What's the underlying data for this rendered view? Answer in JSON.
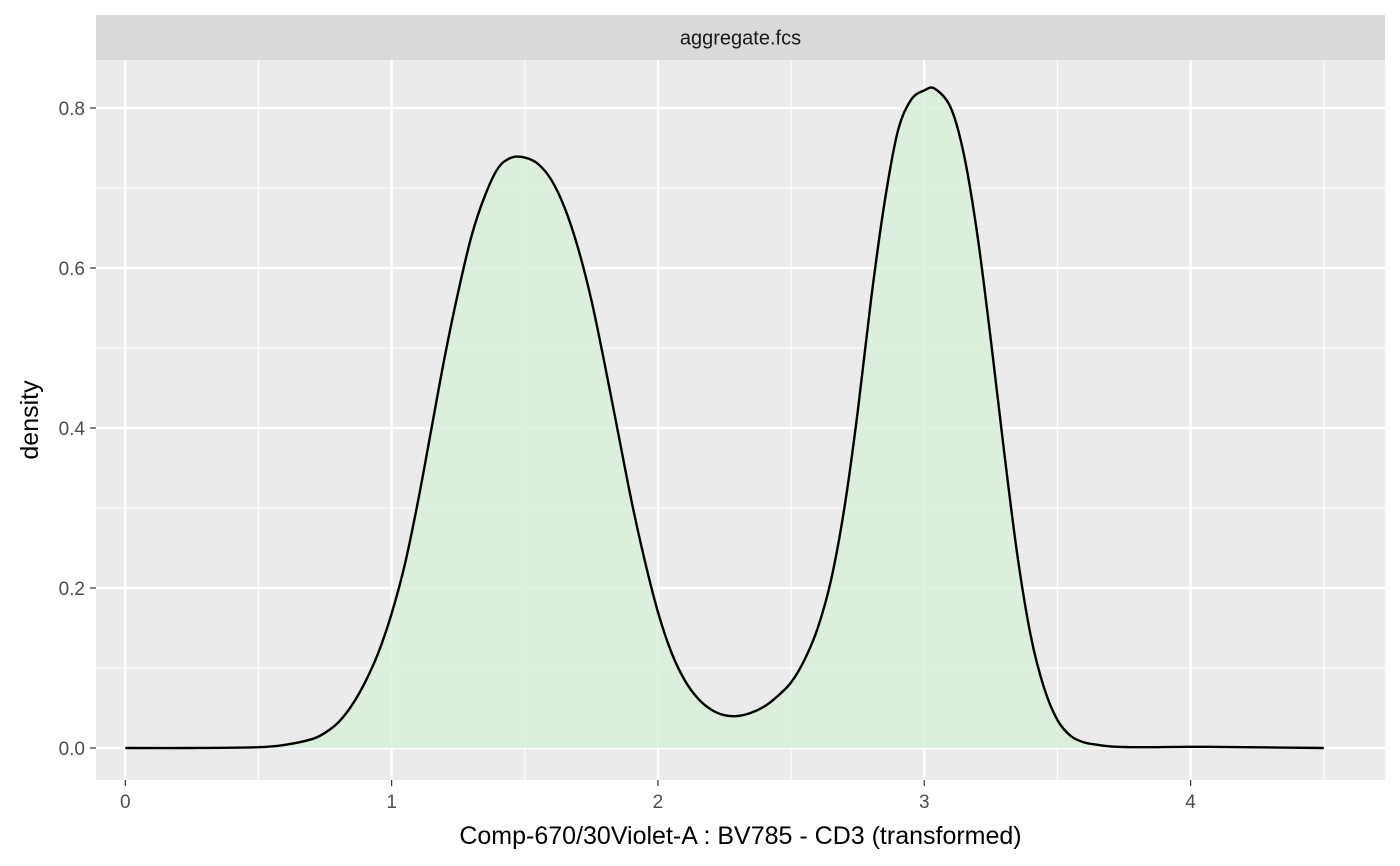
{
  "chart_data": {
    "type": "area",
    "facet_label": "aggregate.fcs",
    "xlabel": "Comp-670/30Violet-A : BV785 - CD3 (transformed)",
    "ylabel": "density",
    "xlim": [
      -0.11,
      4.73
    ],
    "ylim": [
      -0.04,
      0.86
    ],
    "x_ticks": [
      0,
      1,
      2,
      3,
      4
    ],
    "x_tick_labels": [
      "0",
      "1",
      "2",
      "3",
      "4"
    ],
    "y_ticks": [
      0.0,
      0.2,
      0.4,
      0.6,
      0.8
    ],
    "y_tick_labels": [
      "0.0",
      "0.2",
      "0.4",
      "0.6",
      "0.8"
    ],
    "grid": true,
    "legend": "none",
    "series": [
      {
        "x": [
          0.0,
          0.25,
          0.5,
          0.6,
          0.7,
          0.75,
          0.8,
          0.85,
          0.9,
          0.95,
          1.0,
          1.05,
          1.1,
          1.15,
          1.2,
          1.25,
          1.3,
          1.35,
          1.4,
          1.45,
          1.5,
          1.55,
          1.6,
          1.65,
          1.7,
          1.75,
          1.8,
          1.85,
          1.9,
          1.95,
          2.0,
          2.05,
          2.1,
          2.15,
          2.2,
          2.25,
          2.3,
          2.35,
          2.4,
          2.45,
          2.5,
          2.55,
          2.6,
          2.65,
          2.7,
          2.75,
          2.8,
          2.85,
          2.9,
          2.95,
          3.0,
          3.04,
          3.1,
          3.15,
          3.2,
          3.25,
          3.3,
          3.35,
          3.4,
          3.45,
          3.5,
          3.55,
          3.6,
          3.65,
          3.7,
          3.8,
          4.0,
          4.2,
          4.5
        ],
        "y": [
          0.0,
          0.0,
          0.001,
          0.004,
          0.011,
          0.019,
          0.032,
          0.053,
          0.082,
          0.119,
          0.168,
          0.23,
          0.31,
          0.4,
          0.49,
          0.57,
          0.64,
          0.69,
          0.725,
          0.738,
          0.738,
          0.73,
          0.71,
          0.675,
          0.625,
          0.56,
          0.48,
          0.395,
          0.31,
          0.235,
          0.17,
          0.12,
          0.085,
          0.062,
          0.048,
          0.041,
          0.04,
          0.044,
          0.052,
          0.065,
          0.082,
          0.11,
          0.15,
          0.21,
          0.3,
          0.42,
          0.56,
          0.68,
          0.77,
          0.81,
          0.822,
          0.824,
          0.8,
          0.74,
          0.64,
          0.51,
          0.37,
          0.24,
          0.14,
          0.075,
          0.035,
          0.015,
          0.007,
          0.004,
          0.002,
          0.001,
          0.0015,
          0.001,
          0.0
        ]
      }
    ],
    "colors": {
      "panel_background": "#ebebeb",
      "grid": "#ffffff",
      "strip_background": "#d9d9d9",
      "fill": "#d9efd9",
      "line": "#000000",
      "tick": "#333333"
    }
  }
}
